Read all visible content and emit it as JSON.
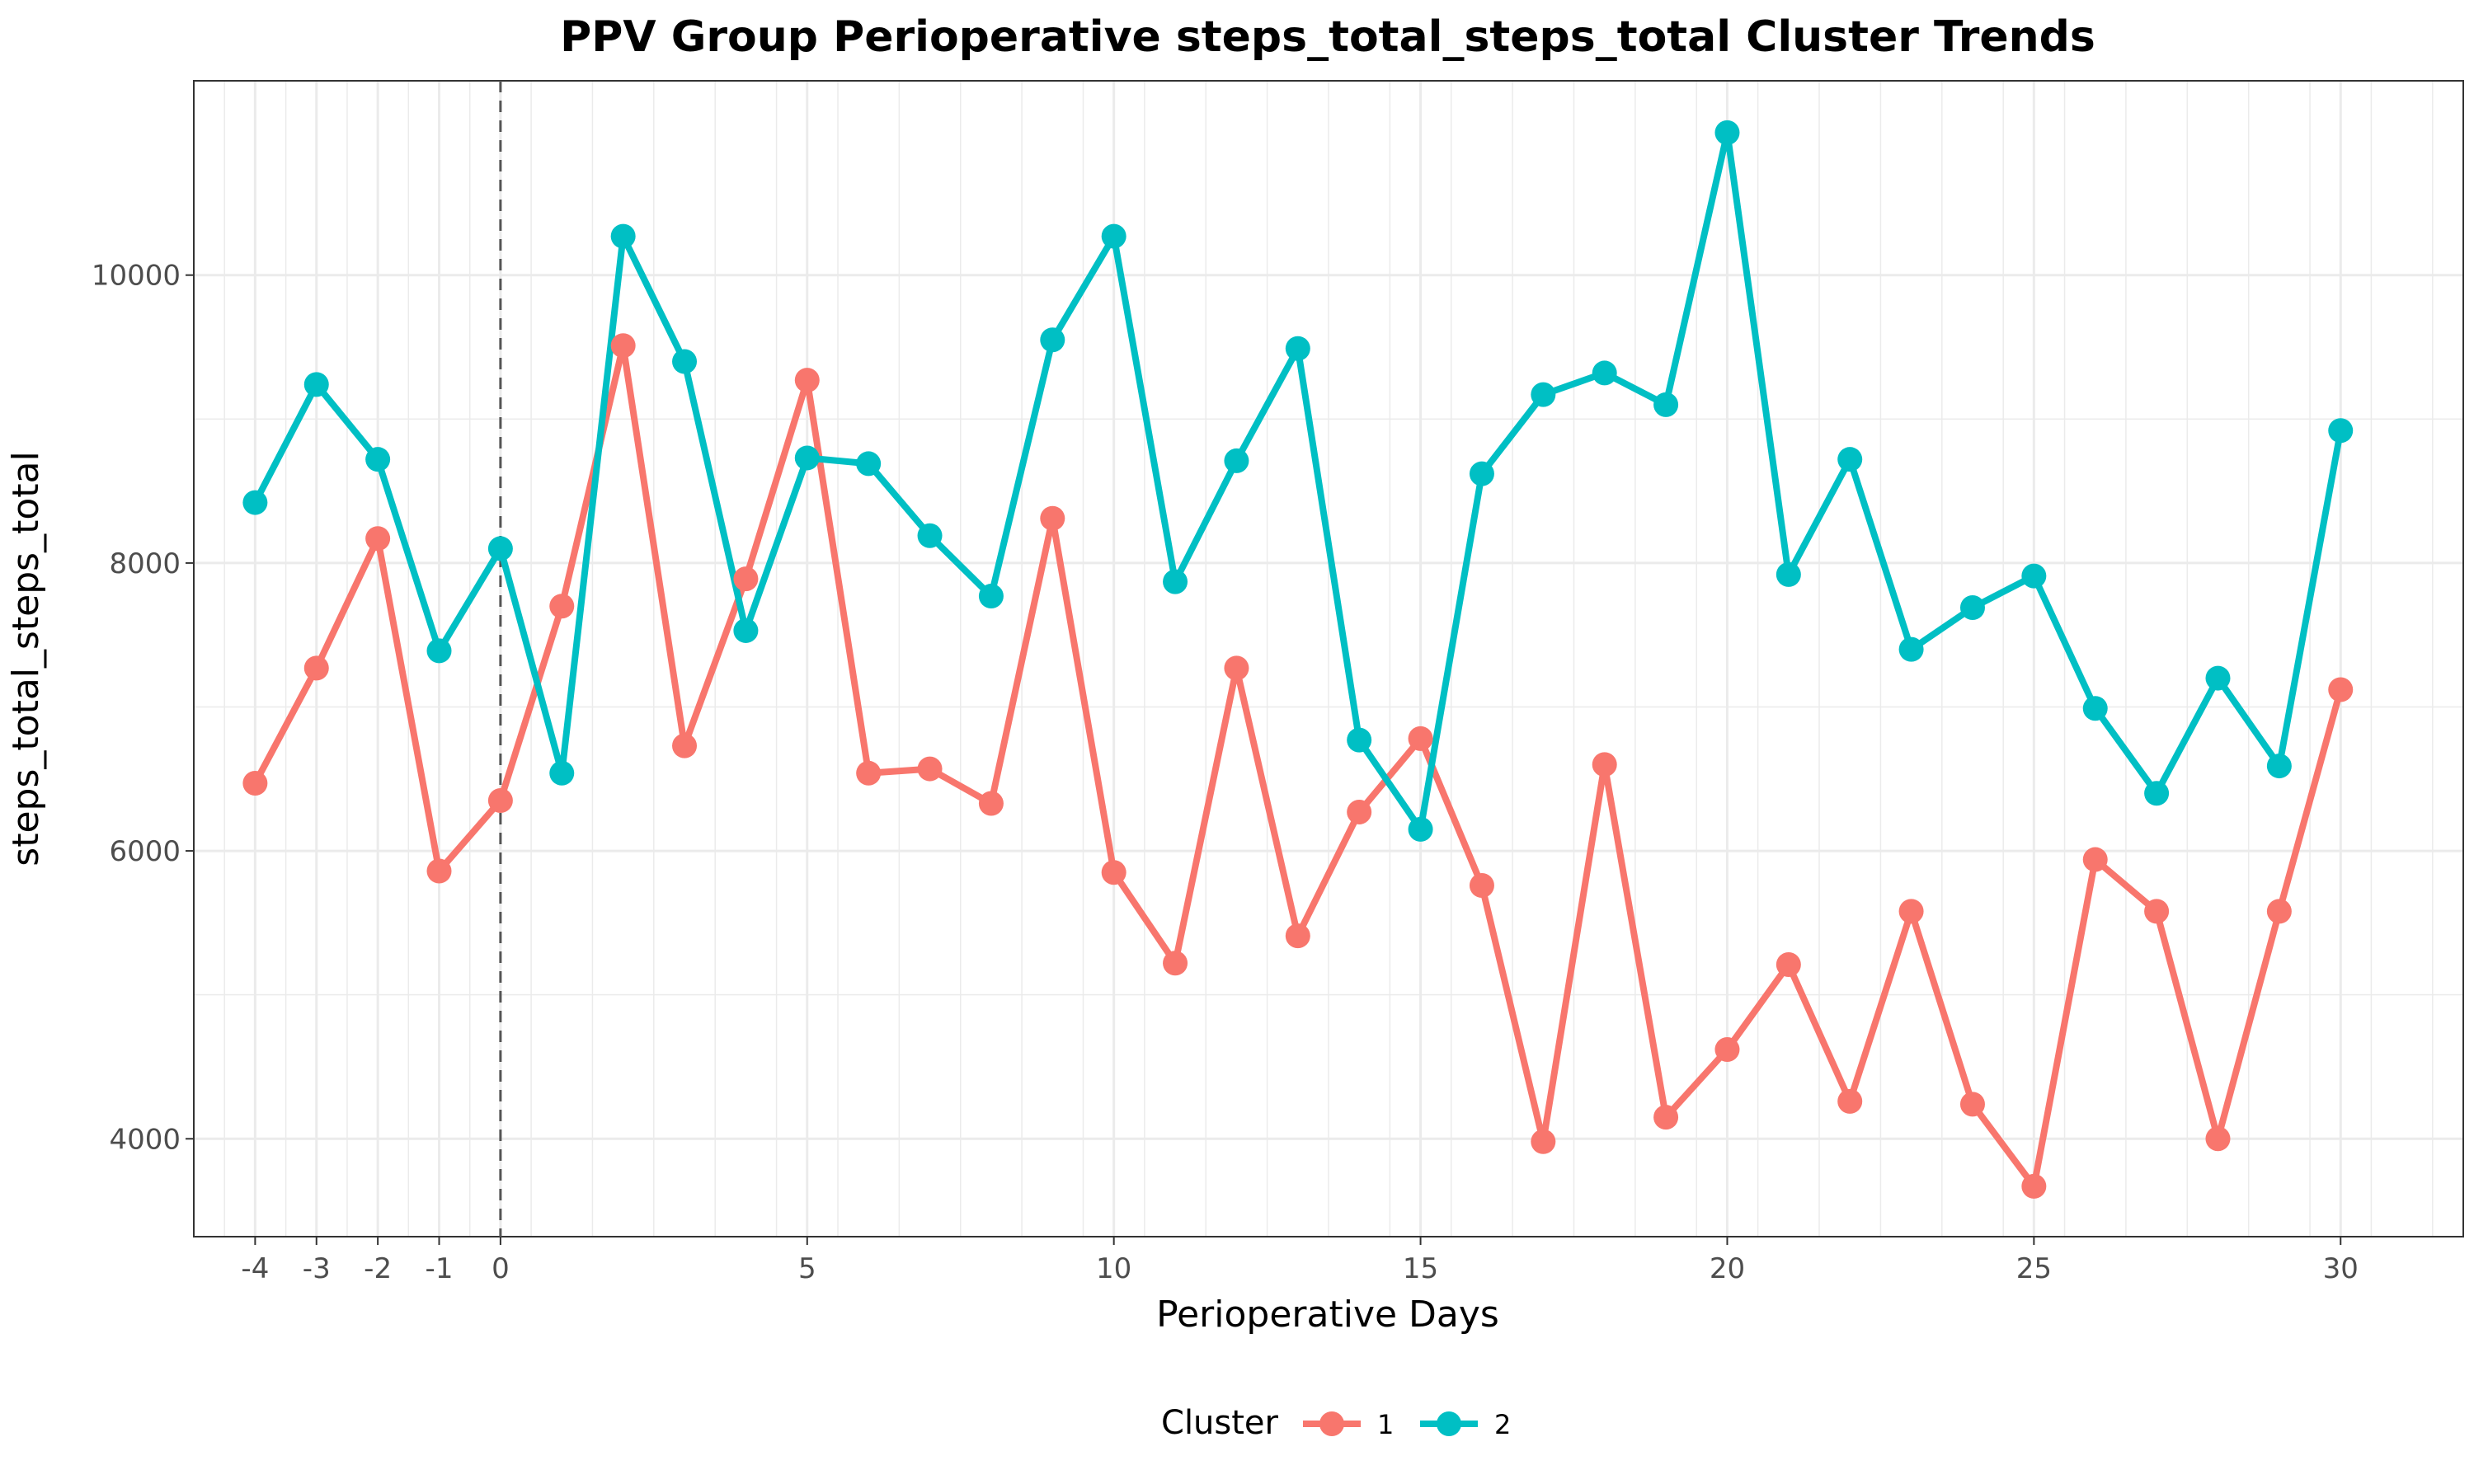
{
  "chart_data": {
    "type": "line",
    "title": "PPV Group Perioperative steps_total_steps_total Cluster Trends",
    "xlabel": "Perioperative Days",
    "ylabel": "steps_total_steps_total",
    "xlim": [
      -5,
      32
    ],
    "ylim": [
      3320,
      11350
    ],
    "x_ticks": [
      -4,
      -3,
      -2,
      -1,
      0,
      5,
      10,
      15,
      20,
      25,
      30
    ],
    "y_ticks": [
      4000,
      6000,
      8000,
      10000
    ],
    "grid": true,
    "vline": 0,
    "legend": {
      "title": "Cluster",
      "position": "bottom"
    },
    "x": [
      -4,
      -3,
      -2,
      -1,
      0,
      1,
      2,
      3,
      4,
      5,
      6,
      7,
      8,
      9,
      10,
      11,
      12,
      13,
      14,
      15,
      16,
      17,
      18,
      19,
      20,
      21,
      22,
      23,
      24,
      25,
      26,
      27,
      28,
      29,
      30
    ],
    "series": [
      {
        "name": "1",
        "color": "#F8766D",
        "values": [
          6470,
          7270,
          8170,
          5860,
          6350,
          7700,
          9510,
          6730,
          7890,
          9270,
          6540,
          6570,
          6330,
          8310,
          5850,
          5220,
          7270,
          5410,
          6270,
          6780,
          5760,
          3980,
          6600,
          4150,
          4620,
          5210,
          4260,
          5580,
          4240,
          3670,
          5940,
          5580,
          4000,
          5580,
          7120
        ]
      },
      {
        "name": "2",
        "color": "#00BFC4",
        "values": [
          8420,
          9240,
          8720,
          7390,
          8100,
          6540,
          10270,
          9400,
          7530,
          8730,
          8690,
          8190,
          7770,
          9550,
          10270,
          7870,
          8710,
          9490,
          6770,
          6150,
          8620,
          9170,
          9320,
          9100,
          10990,
          7920,
          8720,
          7400,
          7690,
          7910,
          6990,
          6400,
          7200,
          6590,
          8920
        ]
      }
    ]
  }
}
